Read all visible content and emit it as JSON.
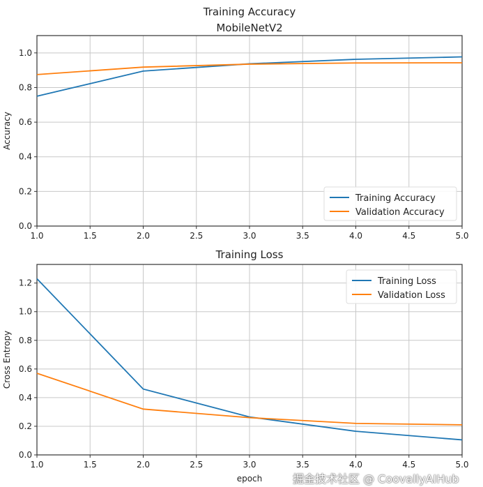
{
  "chart_data": [
    {
      "type": "line",
      "title": "Training Accuracy\nMobileNetV2",
      "title_lines": [
        "Training Accuracy",
        "MobileNetV2"
      ],
      "xlabel": "",
      "ylabel": "Accuracy",
      "xlim": [
        1.0,
        5.0
      ],
      "ylim": [
        0.0,
        1.1
      ],
      "xticks": [
        "1.0",
        "1.5",
        "2.0",
        "2.5",
        "3.0",
        "3.5",
        "4.0",
        "4.5",
        "5.0"
      ],
      "yticks": [
        "0.0",
        "0.2",
        "0.4",
        "0.6",
        "0.8",
        "1.0"
      ],
      "grid": true,
      "legend_position": "lower-right",
      "x": [
        1,
        2,
        3,
        4,
        5
      ],
      "series": [
        {
          "name": "Training Accuracy",
          "color": "#1f77b4",
          "values": [
            0.75,
            0.895,
            0.937,
            0.963,
            0.977
          ]
        },
        {
          "name": "Validation Accuracy",
          "color": "#ff7f0e",
          "values": [
            0.875,
            0.918,
            0.935,
            0.942,
            0.943
          ]
        }
      ]
    },
    {
      "type": "line",
      "title": "Training Loss",
      "title_lines": [
        "Training Loss"
      ],
      "xlabel": "epoch",
      "ylabel": "Cross Entropy",
      "xlim": [
        1.0,
        5.0
      ],
      "ylim": [
        0.0,
        1.33
      ],
      "xticks": [
        "1.0",
        "1.5",
        "2.0",
        "2.5",
        "3.0",
        "3.5",
        "4.0",
        "4.5",
        "5.0"
      ],
      "yticks": [
        "0.0",
        "0.2",
        "0.4",
        "0.6",
        "0.8",
        "1.0",
        "1.2"
      ],
      "grid": true,
      "legend_position": "upper-right",
      "x": [
        1,
        2,
        3,
        4,
        5
      ],
      "series": [
        {
          "name": "Training Loss",
          "color": "#1f77b4",
          "values": [
            1.23,
            0.46,
            0.265,
            0.165,
            0.105
          ]
        },
        {
          "name": "Validation Loss",
          "color": "#ff7f0e",
          "values": [
            0.57,
            0.32,
            0.26,
            0.22,
            0.21
          ]
        }
      ]
    }
  ],
  "watermark": "掘金技术社区 @ CoovallyAIHub"
}
